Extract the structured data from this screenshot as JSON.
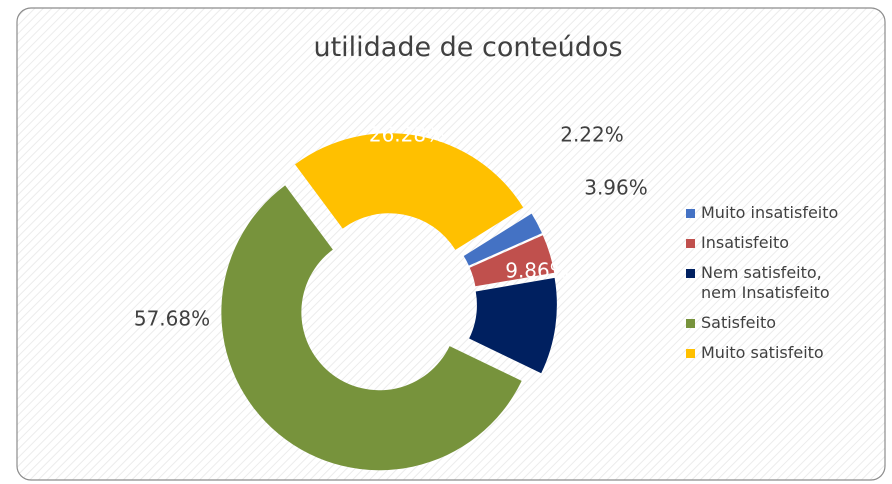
{
  "chart_data": {
    "type": "donut",
    "title": "utilidade de conteúdos",
    "categories": [
      "Muito insatisfeito",
      "Insatisfeito",
      "Nem satisfeito, nem Insatisfeito",
      "Satisfeito",
      "Muito satisfeito"
    ],
    "values": [
      2.22,
      3.96,
      9.86,
      57.68,
      26.28
    ],
    "value_labels": [
      "2.22%",
      "3.96%",
      "9.86%",
      "57.68%",
      "26.28%"
    ],
    "colors": [
      "#4472c4",
      "#c0504d",
      "#002060",
      "#77933c",
      "#ffc000"
    ],
    "legend": "right"
  }
}
